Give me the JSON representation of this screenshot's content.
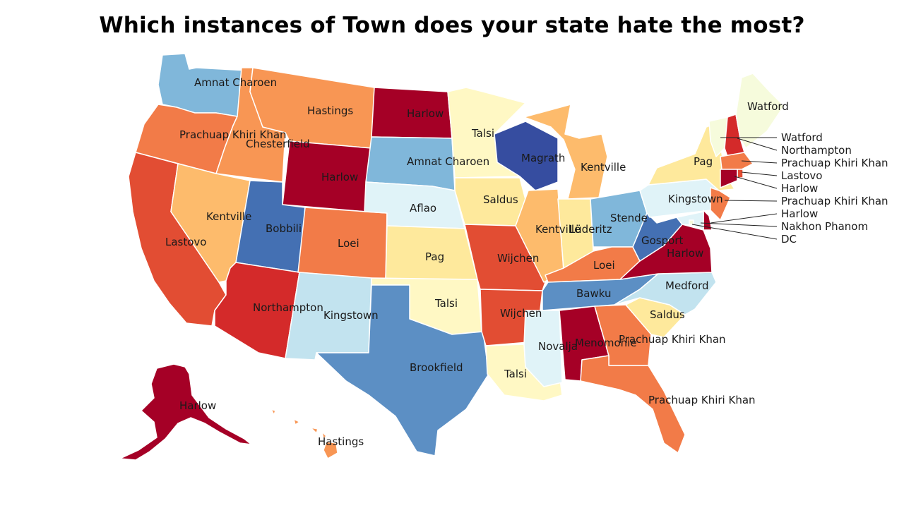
{
  "title": "Which instances of Town does your state hate the most?",
  "colors": {
    "c1": "#a50026",
    "c2": "#d42a2a",
    "c3": "#e24d33",
    "c4": "#f27b48",
    "c5": "#f89654",
    "c6": "#fdbb6c",
    "c7": "#fee99c",
    "c8": "#fff8c4",
    "c9": "#f6fbdc",
    "c10": "#e0f3f8",
    "c11": "#c2e3ef",
    "c12": "#80b7da",
    "c13": "#5c8fc4",
    "c14": "#4470b3",
    "c15": "#364da0"
  },
  "states": [
    {
      "code": "WA",
      "label": "Amnat Charoen",
      "color": "c12"
    },
    {
      "code": "OR",
      "label": "Prachuap Khiri Khan",
      "color": "c4"
    },
    {
      "code": "CA",
      "label": "Lastovo",
      "color": "c3"
    },
    {
      "code": "ID",
      "label": "Chesterfield",
      "color": "c5"
    },
    {
      "code": "NV",
      "label": "Kentville",
      "color": "c6"
    },
    {
      "code": "MT",
      "label": "Hastings",
      "color": "c5"
    },
    {
      "code": "WY",
      "label": "Harlow",
      "color": "c1"
    },
    {
      "code": "UT",
      "label": "Bobbili",
      "color": "c14"
    },
    {
      "code": "AZ",
      "label": "Northampton",
      "color": "c2"
    },
    {
      "code": "CO",
      "label": "Loei",
      "color": "c4"
    },
    {
      "code": "NM",
      "label": "Kingstown",
      "color": "c11"
    },
    {
      "code": "ND",
      "label": "Harlow",
      "color": "c1"
    },
    {
      "code": "SD",
      "label": "Amnat Charoen",
      "color": "c12"
    },
    {
      "code": "NE",
      "label": "Aflao",
      "color": "c10"
    },
    {
      "code": "KS",
      "label": "Pag",
      "color": "c7"
    },
    {
      "code": "OK",
      "label": "Talsi",
      "color": "c8"
    },
    {
      "code": "TX",
      "label": "Brookfield",
      "color": "c13"
    },
    {
      "code": "MN",
      "label": "Talsi",
      "color": "c8"
    },
    {
      "code": "IA",
      "label": "Saldus",
      "color": "c7"
    },
    {
      "code": "MO",
      "label": "Wijchen",
      "color": "c3"
    },
    {
      "code": "AR",
      "label": "Wijchen",
      "color": "c3"
    },
    {
      "code": "LA",
      "label": "Talsi",
      "color": "c8"
    },
    {
      "code": "WI",
      "label": "Magrath",
      "color": "c15"
    },
    {
      "code": "IL",
      "label": "Kentville",
      "color": "c6"
    },
    {
      "code": "MI",
      "label": "Kentville",
      "color": "c6"
    },
    {
      "code": "IN",
      "label": "Lüderitz",
      "color": "c7"
    },
    {
      "code": "OH",
      "label": "Stende",
      "color": "c12"
    },
    {
      "code": "KY",
      "label": "Loei",
      "color": "c4"
    },
    {
      "code": "TN",
      "label": "Bawku",
      "color": "c13"
    },
    {
      "code": "MS",
      "label": "Novalja",
      "color": "c10"
    },
    {
      "code": "AL",
      "label": "Menomonie",
      "color": "c1"
    },
    {
      "code": "GA",
      "label": "Prachuap Khiri Khan",
      "color": "c4"
    },
    {
      "code": "FL",
      "label": "Prachuap Khiri Khan",
      "color": "c4"
    },
    {
      "code": "SC",
      "label": "Saldus",
      "color": "c7"
    },
    {
      "code": "NC",
      "label": "Medford",
      "color": "c11"
    },
    {
      "code": "VA",
      "label": "Harlow",
      "color": "c1"
    },
    {
      "code": "WV",
      "label": "Gosport",
      "color": "c14"
    },
    {
      "code": "PA",
      "label": "Kingstown",
      "color": "c10"
    },
    {
      "code": "NY",
      "label": "Pag",
      "color": "c7"
    },
    {
      "code": "ME",
      "label": "Watford",
      "color": "c9"
    },
    {
      "code": "VT",
      "label": "Watford",
      "color": "c9"
    },
    {
      "code": "NH",
      "label": "Northampton",
      "color": "c2"
    },
    {
      "code": "MA",
      "label": "Prachuap Khiri Khan",
      "color": "c4"
    },
    {
      "code": "RI",
      "label": "Lastovo",
      "color": "c3"
    },
    {
      "code": "CT",
      "label": "Harlow",
      "color": "c1"
    },
    {
      "code": "NJ",
      "label": "Prachuap Khiri Khan",
      "color": "c4"
    },
    {
      "code": "DE",
      "label": "Harlow",
      "color": "c1"
    },
    {
      "code": "MD",
      "label": "Nakhon Phanom",
      "color": "c10"
    },
    {
      "code": "DC",
      "label": "DC",
      "color": "c9"
    },
    {
      "code": "AK",
      "label": "Harlow",
      "color": "c1"
    },
    {
      "code": "HI",
      "label": "Hastings",
      "color": "c5"
    }
  ]
}
